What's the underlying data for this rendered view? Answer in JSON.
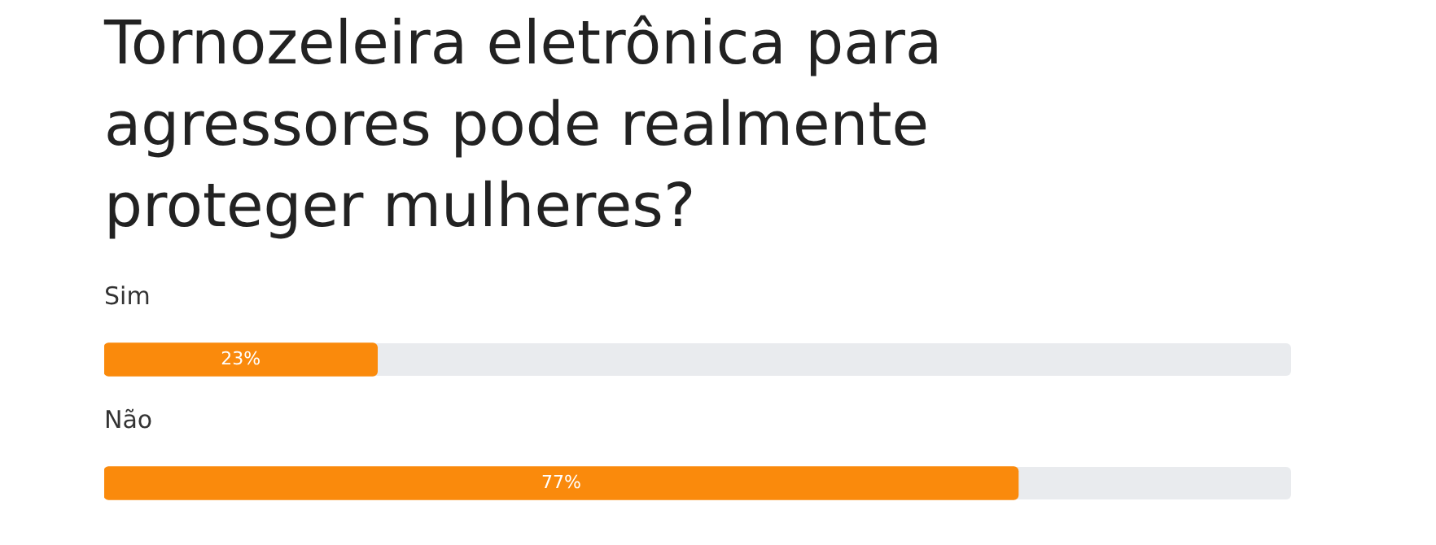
{
  "chart_data": {
    "type": "bar",
    "orientation": "horizontal",
    "title": "Tornozeleira eletrônica para agressores pode realmente proteger mulheres?",
    "categories": [
      "Sim",
      "Não"
    ],
    "values": [
      23,
      77
    ],
    "color": "#fa8a0c",
    "xlim": [
      0,
      100
    ],
    "tick_labels": false,
    "legend": false,
    "value_labels": [
      "23%",
      "77%"
    ]
  }
}
